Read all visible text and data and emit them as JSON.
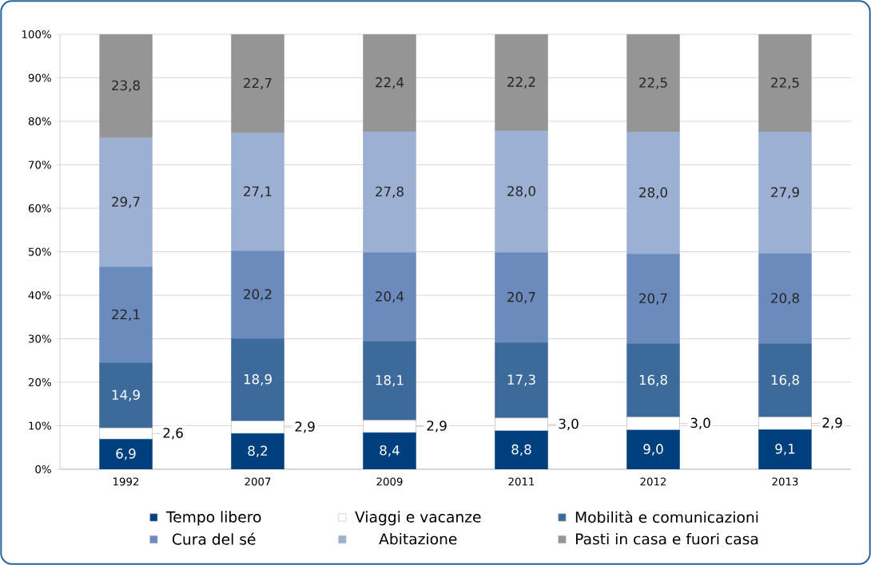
{
  "chart_data": {
    "type": "bar",
    "stacked": true,
    "categories": [
      "1992",
      "2007",
      "2009",
      "2011",
      "2012",
      "2013"
    ],
    "series": [
      {
        "name": "Tempo libero",
        "color": "#003f7d",
        "values": [
          6.9,
          8.2,
          8.4,
          8.8,
          9.0,
          9.1
        ],
        "value_labels": [
          "6,9",
          "8,2",
          "8,4",
          "8,8",
          "9,0",
          "9,1"
        ]
      },
      {
        "name": "Viaggi e vacanze",
        "color": "#ffffff",
        "values": [
          2.6,
          2.9,
          2.9,
          3.0,
          3.0,
          2.9
        ],
        "value_labels": [
          "2,6",
          "2,9",
          "2,9",
          "3,0",
          "3,0",
          "2,9"
        ]
      },
      {
        "name": "Mobilità e comunicazioni",
        "color": "#3c6a9b",
        "values": [
          14.9,
          18.9,
          18.1,
          17.3,
          16.8,
          16.8
        ],
        "value_labels": [
          "14,9",
          "18,9",
          "18,1",
          "17,3",
          "16,8",
          "16,8"
        ]
      },
      {
        "name": "Cura del sé",
        "color": "#6b8bbd",
        "values": [
          22.1,
          20.2,
          20.4,
          20.7,
          20.7,
          20.8
        ],
        "value_labels": [
          "22,1",
          "20,2",
          "20,4",
          "20,7",
          "20,7",
          "20,8"
        ]
      },
      {
        "name": "Abitazione",
        "color": "#9cb0d3",
        "values": [
          29.7,
          27.1,
          27.8,
          28.0,
          28.0,
          27.9
        ],
        "value_labels": [
          "29,7",
          "27,1",
          "27,8",
          "28,0",
          "28,0",
          "27,9"
        ]
      },
      {
        "name": "Pasti in casa e fuori casa",
        "color": "#959595",
        "values": [
          23.8,
          22.7,
          22.4,
          22.2,
          22.5,
          22.5
        ],
        "value_labels": [
          "23,8",
          "22,7",
          "22,4",
          "22,2",
          "22,5",
          "22,5"
        ]
      }
    ],
    "ylim": [
      0,
      100
    ],
    "yticks": [
      {
        "value": 0,
        "label": "0%"
      },
      {
        "value": 10,
        "label": "10%"
      },
      {
        "value": 20,
        "label": "20%"
      },
      {
        "value": 30,
        "label": "30%"
      },
      {
        "value": 40,
        "label": "40%"
      },
      {
        "value": 50,
        "label": "50%"
      },
      {
        "value": 60,
        "label": "60%"
      },
      {
        "value": 70,
        "label": "70%"
      },
      {
        "value": 80,
        "label": "80%"
      },
      {
        "value": 90,
        "label": "90%"
      },
      {
        "value": 100,
        "label": "100%"
      }
    ],
    "grid": "y",
    "legend": "bottom"
  }
}
